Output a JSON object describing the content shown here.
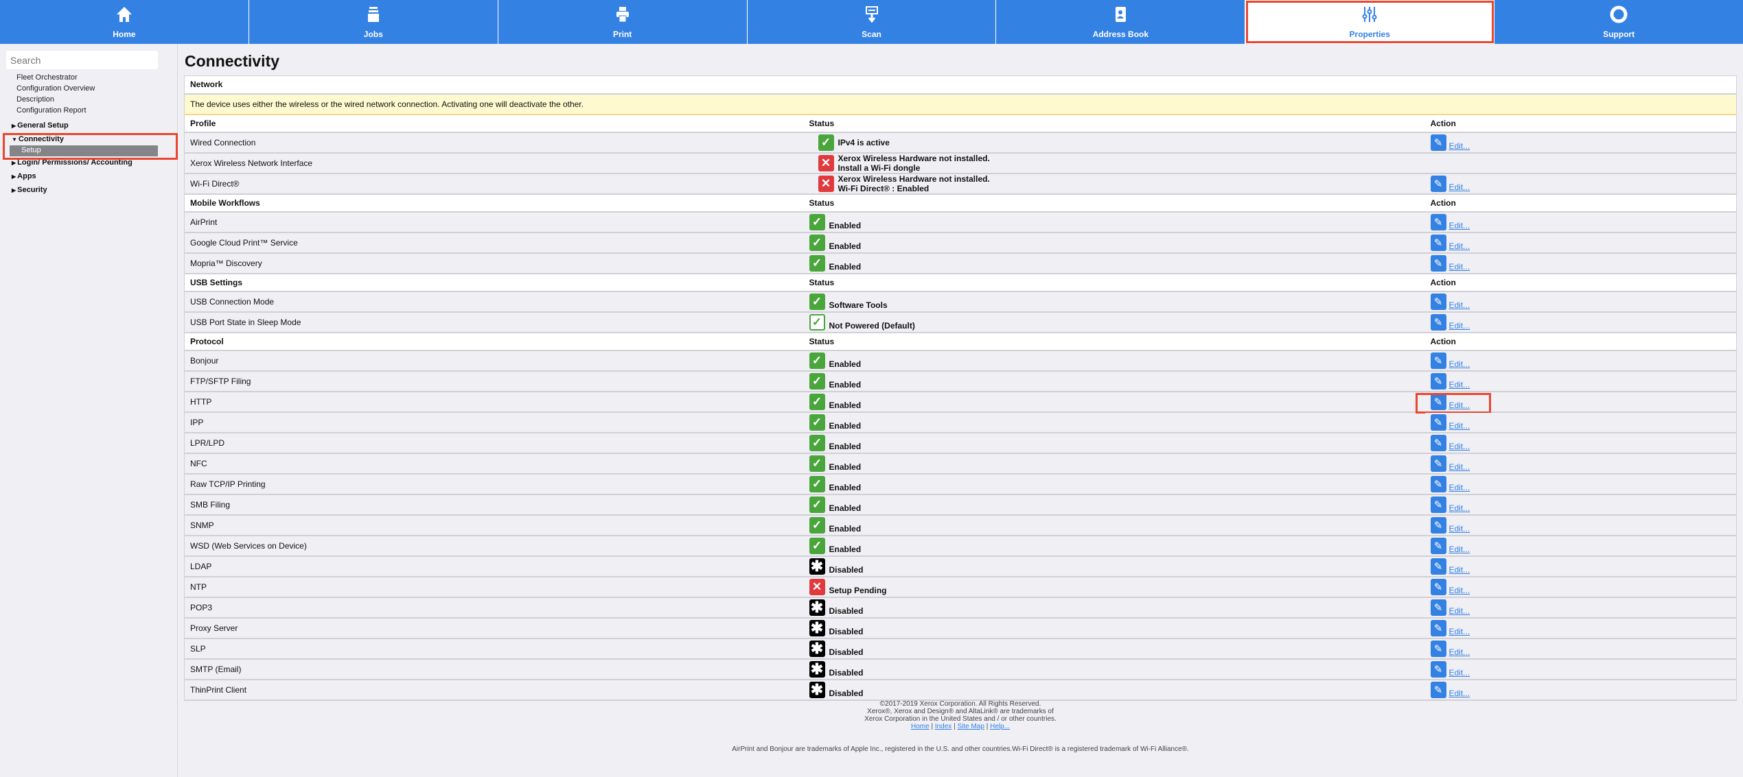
{
  "nav": {
    "tabs": [
      {
        "label": "Home",
        "icon": "home-icon"
      },
      {
        "label": "Jobs",
        "icon": "jobs-icon"
      },
      {
        "label": "Print",
        "icon": "printer-icon"
      },
      {
        "label": "Scan",
        "icon": "scan-icon"
      },
      {
        "label": "Address Book",
        "icon": "address-book-icon"
      },
      {
        "label": "Properties",
        "icon": "sliders-icon",
        "active": true
      },
      {
        "label": "Support",
        "icon": "lifebuoy-icon"
      }
    ]
  },
  "sidebar": {
    "search_placeholder": "Search",
    "links": [
      "Fleet Orchestrator",
      "Configuration Overview",
      "Description",
      "Configuration Report"
    ],
    "groups": [
      "General Setup",
      "Connectivity",
      "Login/ Permissions/ Accounting",
      "Apps",
      "Security"
    ],
    "selected_item": "Setup"
  },
  "main": {
    "title": "Connectivity",
    "sections": [
      {
        "title": "Network",
        "note": "The device uses either the wireless or the wired network connection. Activating one will deactivate the other.",
        "headers": [
          "Profile",
          "Status",
          "Action"
        ],
        "indent": true,
        "rows": [
          {
            "name": "Wired Connection",
            "status": "ok",
            "text": [
              "IPv4 is active"
            ],
            "edit": true
          },
          {
            "name": "Xerox Wireless Network Interface",
            "status": "error",
            "text": [
              "Xerox Wireless Hardware not installed.",
              "Install a Wi-Fi dongle"
            ],
            "edit": false
          },
          {
            "name": "Wi-Fi Direct®",
            "status": "error",
            "text": [
              "Xerox Wireless Hardware not installed.",
              "Wi-Fi Direct® : Enabled"
            ],
            "edit": true
          }
        ]
      },
      {
        "title": "Mobile Workflows",
        "headers": [
          "Mobile Workflows",
          "Status",
          "Action"
        ],
        "rows": [
          {
            "name": "AirPrint",
            "status": "ok",
            "text": [
              "Enabled"
            ],
            "edit": true
          },
          {
            "name": "Google Cloud Print™ Service",
            "status": "ok",
            "text": [
              "Enabled"
            ],
            "edit": true
          },
          {
            "name": "Mopria™ Discovery",
            "status": "ok",
            "text": [
              "Enabled"
            ],
            "edit": true
          }
        ]
      },
      {
        "title": "USB Settings",
        "headers": [
          "USB Settings",
          "Status",
          "Action"
        ],
        "rows": [
          {
            "name": "USB Connection Mode",
            "status": "ok",
            "text": [
              "Software Tools"
            ],
            "edit": true
          },
          {
            "name": "USB Port State in Sleep Mode",
            "status": "ok-outline",
            "text": [
              "Not Powered (Default)"
            ],
            "edit": true
          }
        ]
      },
      {
        "title": "Protocol",
        "headers": [
          "Protocol",
          "Status",
          "Action"
        ],
        "rows": [
          {
            "name": "Bonjour",
            "status": "ok",
            "text": [
              "Enabled"
            ],
            "edit": true
          },
          {
            "name": "FTP/SFTP Filing",
            "status": "ok",
            "text": [
              "Enabled"
            ],
            "edit": true
          },
          {
            "name": "HTTP",
            "status": "ok",
            "text": [
              "Enabled"
            ],
            "edit": true,
            "highlight": true
          },
          {
            "name": "IPP",
            "status": "ok",
            "text": [
              "Enabled"
            ],
            "edit": true
          },
          {
            "name": "LPR/LPD",
            "status": "ok",
            "text": [
              "Enabled"
            ],
            "edit": true
          },
          {
            "name": "NFC",
            "status": "ok",
            "text": [
              "Enabled"
            ],
            "edit": true
          },
          {
            "name": "Raw TCP/IP Printing",
            "status": "ok",
            "text": [
              "Enabled"
            ],
            "edit": true
          },
          {
            "name": "SMB Filing",
            "status": "ok",
            "text": [
              "Enabled"
            ],
            "edit": true
          },
          {
            "name": "SNMP",
            "status": "ok",
            "text": [
              "Enabled"
            ],
            "edit": true
          },
          {
            "name": "WSD (Web Services on Device)",
            "status": "ok",
            "text": [
              "Enabled"
            ],
            "edit": true
          },
          {
            "name": "LDAP",
            "status": "disabled",
            "text": [
              "Disabled"
            ],
            "edit": true
          },
          {
            "name": "NTP",
            "status": "error",
            "text": [
              "Setup Pending"
            ],
            "edit": true
          },
          {
            "name": "POP3",
            "status": "disabled",
            "text": [
              "Disabled"
            ],
            "edit": true
          },
          {
            "name": "Proxy Server",
            "status": "disabled",
            "text": [
              "Disabled"
            ],
            "edit": true
          },
          {
            "name": "SLP",
            "status": "disabled",
            "text": [
              "Disabled"
            ],
            "edit": true
          },
          {
            "name": "SMTP (Email)",
            "status": "disabled",
            "text": [
              "Disabled"
            ],
            "edit": true
          },
          {
            "name": "ThinPrint Client",
            "status": "disabled",
            "text": [
              "Disabled"
            ],
            "edit": true
          }
        ]
      }
    ],
    "edit_label": "Edit..."
  },
  "footer": {
    "lines": [
      "©2017-2019  Xerox Corporation. All Rights Reserved.",
      "Xerox®, Xerox and Design® and AltaLink® are trademarks of",
      "Xerox Corporation in the United States and / or other countries."
    ],
    "links": [
      "Home",
      "Index",
      "Site Map",
      "Help..."
    ],
    "trademark": "AirPrint and Bonjour are trademarks of Apple Inc., registered in the U.S. and other countries.Wi-Fi Direct® is a registered trademark of Wi-Fi Alliance®."
  },
  "colors": {
    "accent": "#3481e4",
    "highlight": "#e9452f",
    "ok": "#4aa63c",
    "error": "#e03a3e",
    "note_bg": "#fef9ce"
  }
}
